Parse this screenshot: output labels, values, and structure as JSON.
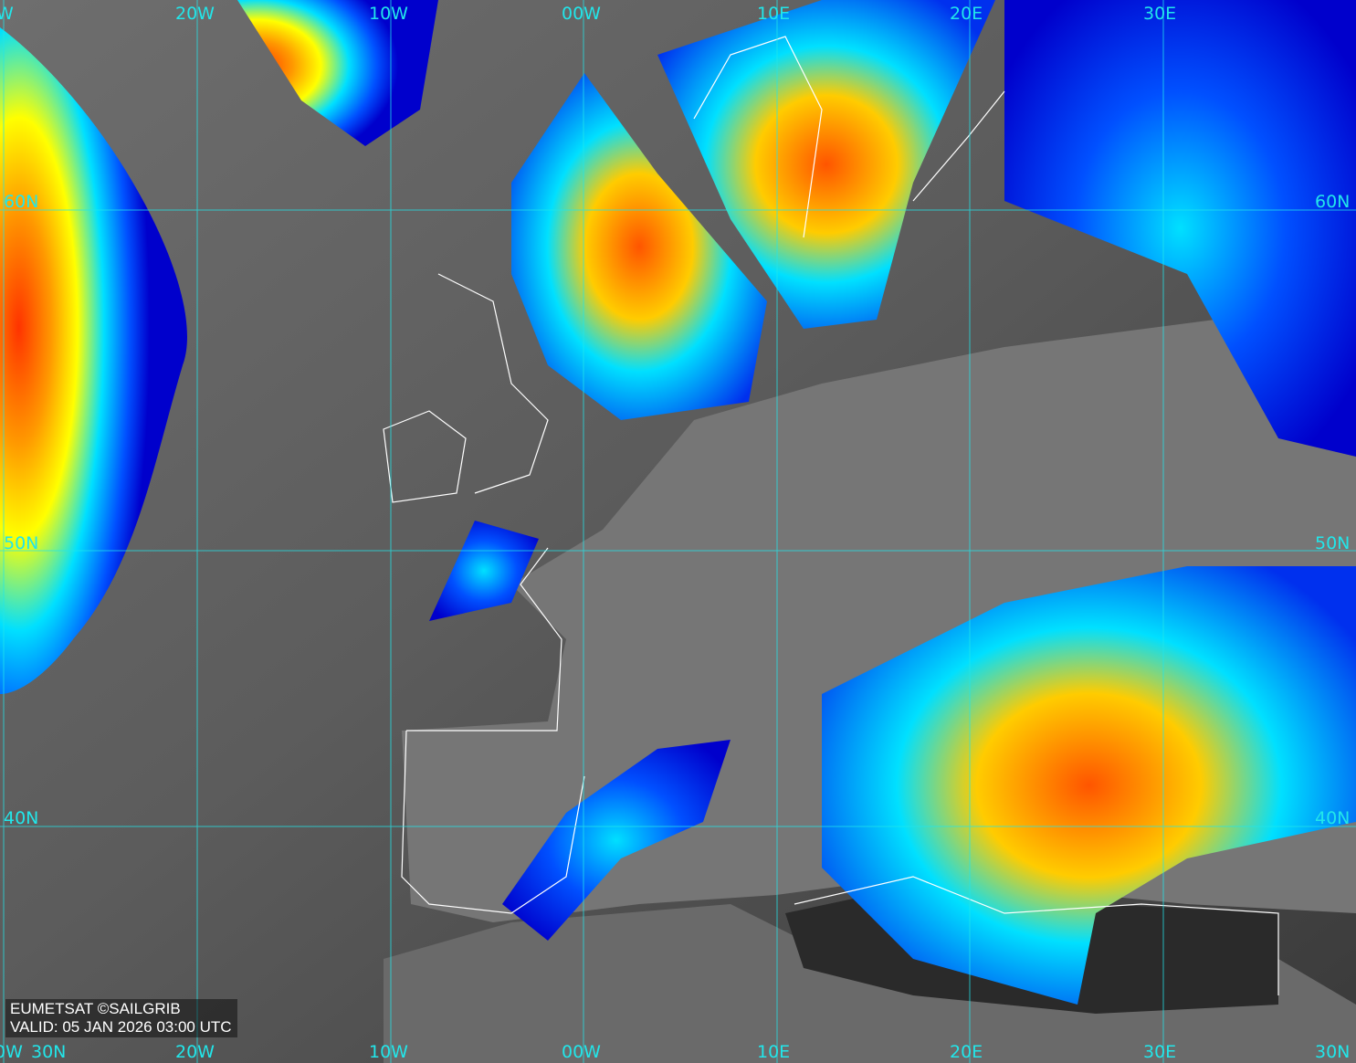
{
  "map": {
    "top_labels": [
      "W",
      "20W",
      "10W",
      "00W",
      "10E",
      "20E",
      "30E"
    ],
    "bottom_labels": [
      "0W",
      "20W",
      "10W",
      "00W",
      "10E",
      "20E",
      "30E"
    ],
    "left_labels": [
      "60N",
      "50N",
      "40N",
      "30N"
    ],
    "right_labels": [
      "60N",
      "50N",
      "40N",
      "30N"
    ],
    "grid_color": "#22e6ea",
    "coast_color": "#ffffff",
    "colorscale": [
      "#0000cc",
      "#0050ff",
      "#00e0ff",
      "#ffff00",
      "#ff9900",
      "#ff3300"
    ]
  },
  "caption": {
    "source": "EUMETSAT ©SAILGRIB",
    "valid": "VALID:  05 JAN 2026 03:00 UTC"
  }
}
